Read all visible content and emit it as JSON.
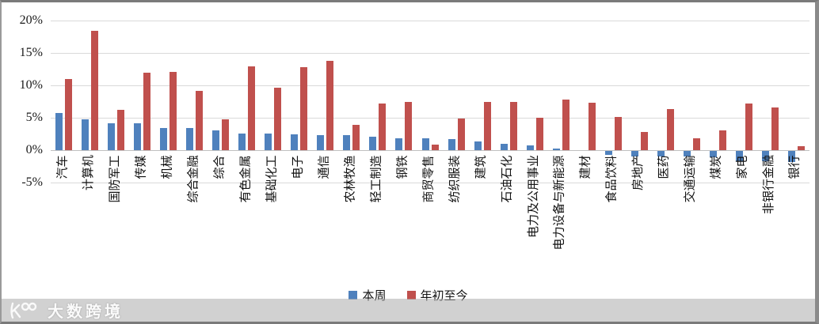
{
  "chart_data": {
    "type": "bar",
    "title": "",
    "xlabel": "",
    "ylabel": "",
    "ylim": [
      -5,
      20
    ],
    "yticks": [
      {
        "value": 20,
        "label": "20%"
      },
      {
        "value": 15,
        "label": "15%"
      },
      {
        "value": 10,
        "label": "10%"
      },
      {
        "value": 5,
        "label": "5%"
      },
      {
        "value": 0,
        "label": "0%"
      },
      {
        "value": -5,
        "label": "-5%"
      }
    ],
    "grid": "horizontal",
    "legend_position": "bottom-center",
    "categories": [
      "汽车",
      "计算机",
      "国防军工",
      "传媒",
      "机械",
      "综合金融",
      "综合",
      "有色金属",
      "基础化工",
      "电子",
      "通信",
      "农林牧渔",
      "轻工制造",
      "钢铁",
      "商贸零售",
      "纺织服装",
      "建筑",
      "石油石化",
      "电力及公用事业",
      "电力设备与新能源",
      "建材",
      "食品饮料",
      "房地产",
      "医药",
      "交通运输",
      "煤炭",
      "家电",
      "非银行金融",
      "银行"
    ],
    "series": [
      {
        "name": "本周",
        "color": "#4F81BD",
        "values": [
          5.7,
          4.8,
          4.1,
          4.1,
          3.4,
          3.4,
          3.1,
          2.6,
          2.6,
          2.5,
          2.3,
          2.3,
          2.1,
          1.8,
          1.8,
          1.7,
          1.4,
          1.0,
          0.7,
          0.2,
          0.0,
          -0.6,
          -0.8,
          -0.8,
          -0.9,
          -1.0,
          -1.6,
          -1.6,
          -1.7
        ]
      },
      {
        "name": "年初至今",
        "color": "#C0504D",
        "values": [
          11.0,
          18.4,
          6.2,
          12.0,
          12.1,
          9.1,
          4.8,
          12.9,
          9.6,
          12.8,
          13.8,
          3.9,
          7.2,
          7.5,
          0.8,
          4.9,
          7.5,
          7.4,
          5.0,
          7.8,
          7.3,
          5.1,
          2.8,
          6.3,
          1.8,
          3.1,
          7.2,
          6.6,
          0.6
        ]
      }
    ]
  },
  "legend": {
    "items": [
      {
        "label": "本周",
        "color": "#4F81BD"
      },
      {
        "label": "年初至今",
        "color": "#C0504D"
      }
    ]
  },
  "watermark": {
    "brand": "大数跨境"
  },
  "colors": {
    "series_this_week": "#4F81BD",
    "series_ytd": "#C0504D",
    "gridline": "#d9d9d9",
    "frame_border": "#7a7a7a",
    "watermark_text": "#ffffff"
  }
}
